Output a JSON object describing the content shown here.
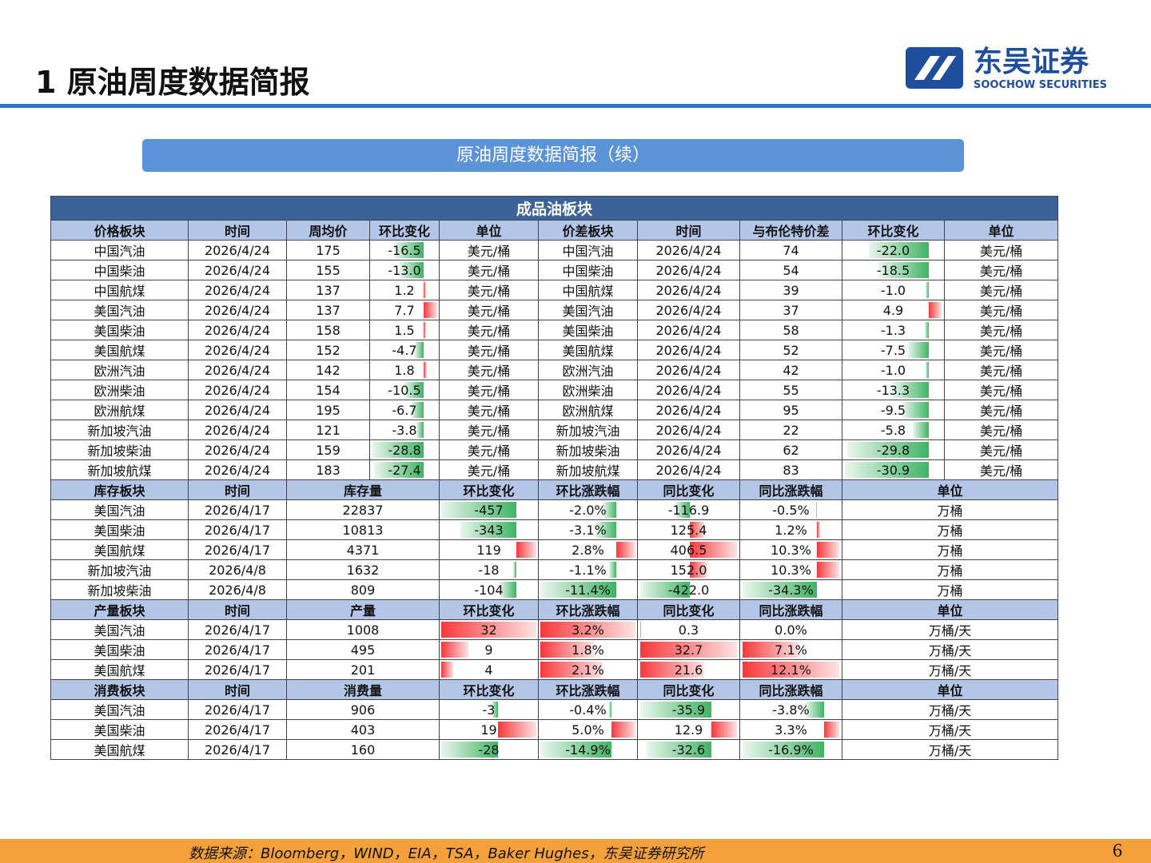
{
  "header": {
    "title": "1 原油周度数据简报",
    "logo_cn": "东吴证券",
    "logo_en": "SOOCHOW SECURITIES"
  },
  "banner": "原油周度数据简报（续）",
  "table": {
    "title": "成品油板块",
    "sections": [
      {
        "header": [
          "价格板块",
          "时间",
          "周均价",
          "环比变化",
          "单位",
          "价差板块",
          "时间",
          "与布伦特价差",
          "环比变化",
          "单位"
        ],
        "rows": [
          [
            "中国汽油",
            "2026/4/24",
            "175",
            "-16.5",
            "美元/桶",
            "中国汽油",
            "2026/4/24",
            "74",
            "-22.0",
            "美元/桶"
          ],
          [
            "中国柴油",
            "2026/4/24",
            "155",
            "-13.0",
            "美元/桶",
            "中国柴油",
            "2026/4/24",
            "54",
            "-18.5",
            "美元/桶"
          ],
          [
            "中国航煤",
            "2026/4/24",
            "137",
            "1.2",
            "美元/桶",
            "中国航煤",
            "2026/4/24",
            "39",
            "-1.0",
            "美元/桶"
          ],
          [
            "美国汽油",
            "2026/4/24",
            "137",
            "7.7",
            "美元/桶",
            "美国汽油",
            "2026/4/24",
            "37",
            "4.9",
            "美元/桶"
          ],
          [
            "美国柴油",
            "2026/4/24",
            "158",
            "1.5",
            "美元/桶",
            "美国柴油",
            "2026/4/24",
            "58",
            "-1.3",
            "美元/桶"
          ],
          [
            "美国航煤",
            "2026/4/24",
            "152",
            "-4.7",
            "美元/桶",
            "美国航煤",
            "2026/4/24",
            "52",
            "-7.5",
            "美元/桶"
          ],
          [
            "欧洲汽油",
            "2026/4/24",
            "142",
            "1.8",
            "美元/桶",
            "欧洲汽油",
            "2026/4/24",
            "42",
            "-1.0",
            "美元/桶"
          ],
          [
            "欧洲柴油",
            "2026/4/24",
            "154",
            "-10.5",
            "美元/桶",
            "欧洲柴油",
            "2026/4/24",
            "55",
            "-13.3",
            "美元/桶"
          ],
          [
            "欧洲航煤",
            "2026/4/24",
            "195",
            "-6.7",
            "美元/桶",
            "欧洲航煤",
            "2026/4/24",
            "95",
            "-9.5",
            "美元/桶"
          ],
          [
            "新加坡汽油",
            "2026/4/24",
            "121",
            "-3.8",
            "美元/桶",
            "新加坡汽油",
            "2026/4/24",
            "22",
            "-5.8",
            "美元/桶"
          ],
          [
            "新加坡柴油",
            "2026/4/24",
            "159",
            "-28.8",
            "美元/桶",
            "新加坡柴油",
            "2026/4/24",
            "62",
            "-29.8",
            "美元/桶"
          ],
          [
            "新加坡航煤",
            "2026/4/24",
            "183",
            "-27.4",
            "美元/桶",
            "新加坡航煤",
            "2026/4/24",
            "83",
            "-30.9",
            "美元/桶"
          ]
        ]
      },
      {
        "header": [
          "库存板块",
          "时间",
          "库存量",
          "环比变化",
          "环比涨跌幅",
          "同比变化",
          "同比涨跌幅",
          "单位"
        ],
        "rows": [
          [
            "美国汽油",
            "2026/4/17",
            "22837",
            "-457",
            "-2.0%",
            "-116.9",
            "-0.5%",
            "万桶"
          ],
          [
            "美国柴油",
            "2026/4/17",
            "10813",
            "-343",
            "-3.1%",
            "125.4",
            "1.2%",
            "万桶"
          ],
          [
            "美国航煤",
            "2026/4/17",
            "4371",
            "119",
            "2.8%",
            "406.5",
            "10.3%",
            "万桶"
          ],
          [
            "新加坡汽油",
            "2026/4/8",
            "1632",
            "-18",
            "-1.1%",
            "152.0",
            "10.3%",
            "万桶"
          ],
          [
            "新加坡柴油",
            "2026/4/8",
            "809",
            "-104",
            "-11.4%",
            "-422.0",
            "-34.3%",
            "万桶"
          ]
        ]
      },
      {
        "header": [
          "产量板块",
          "时间",
          "产量",
          "环比变化",
          "环比涨跌幅",
          "同比变化",
          "同比涨跌幅",
          "单位"
        ],
        "rows": [
          [
            "美国汽油",
            "2026/4/17",
            "1008",
            "32",
            "3.2%",
            "0.3",
            "0.0%",
            "万桶/天"
          ],
          [
            "美国柴油",
            "2026/4/17",
            "495",
            "9",
            "1.8%",
            "32.7",
            "7.1%",
            "万桶/天"
          ],
          [
            "美国航煤",
            "2026/4/17",
            "201",
            "4",
            "2.1%",
            "21.6",
            "12.1%",
            "万桶/天"
          ]
        ]
      },
      {
        "header": [
          "消费板块",
          "时间",
          "消费量",
          "环比变化",
          "环比涨跌幅",
          "同比变化",
          "同比涨跌幅",
          "单位"
        ],
        "rows": [
          [
            "美国汽油",
            "2026/4/17",
            "906",
            "-3",
            "-0.4%",
            "-35.9",
            "-3.8%",
            "万桶/天"
          ],
          [
            "美国柴油",
            "2026/4/17",
            "403",
            "19",
            "5.0%",
            "12.9",
            "3.3%",
            "万桶/天"
          ],
          [
            "美国航煤",
            "2026/4/17",
            "160",
            "-28",
            "-14.9%",
            "-32.6",
            "-16.9%",
            "万桶/天"
          ]
        ]
      }
    ]
  },
  "footer": {
    "source": "数据来源：Bloomberg，WIND，EIA，TSA，Baker Hughes，东吴证券研究所",
    "page": "6"
  }
}
